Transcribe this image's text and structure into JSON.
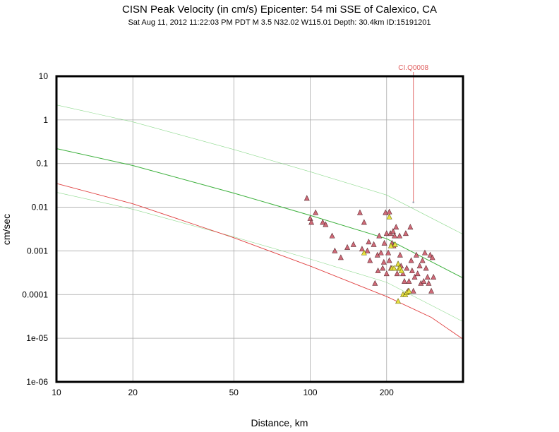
{
  "chart_data": {
    "type": "scatter",
    "title": "CISN Peak Velocity (in cm/s) Epicenter: 54 mi SSE of Calexico, CA",
    "subtitle": "Sat Aug 11, 2012 11:22:03 PM PDT   M 3.5   N32.02 W115.01   Depth: 30.4km   ID:15191201",
    "xlabel": "Distance, km",
    "ylabel": "cm/sec",
    "x_scale": "log",
    "y_scale": "log",
    "xlim": [
      10,
      400
    ],
    "ylim": [
      1e-06,
      10
    ],
    "grid": true,
    "x_ticks": [
      {
        "value": 10,
        "label": "10"
      },
      {
        "value": 20,
        "label": "20"
      },
      {
        "value": 50,
        "label": "50"
      },
      {
        "value": 100,
        "label": "100"
      },
      {
        "value": 200,
        "label": "200"
      }
    ],
    "y_ticks": [
      {
        "value": 10,
        "label": "10"
      },
      {
        "value": 1,
        "label": "1"
      },
      {
        "value": 0.1,
        "label": "0.1"
      },
      {
        "value": 0.01,
        "label": "0.01"
      },
      {
        "value": 0.001,
        "label": "0.001"
      },
      {
        "value": 0.0001,
        "label": "0.0001"
      },
      {
        "value": 1e-05,
        "label": "1e-05"
      },
      {
        "value": 1e-06,
        "label": "1e-06"
      }
    ],
    "curves": [
      {
        "color": "#3cb03c",
        "width": 1.0,
        "opacity": 1.0,
        "points": [
          [
            10,
            0.22
          ],
          [
            20,
            0.09
          ],
          [
            50,
            0.021
          ],
          [
            100,
            0.0065
          ],
          [
            200,
            0.0019
          ],
          [
            400,
            0.00024
          ]
        ]
      },
      {
        "color": "#6fcf6f",
        "width": 0.6,
        "opacity": 0.8,
        "points": [
          [
            10,
            2.2
          ],
          [
            20,
            0.9
          ],
          [
            50,
            0.21
          ],
          [
            100,
            0.065
          ],
          [
            200,
            0.019
          ],
          [
            400,
            0.0024
          ]
        ]
      },
      {
        "color": "#6fcf6f",
        "width": 0.6,
        "opacity": 0.8,
        "points": [
          [
            10,
            0.022
          ],
          [
            20,
            0.009
          ],
          [
            50,
            0.0021
          ],
          [
            100,
            0.00065
          ],
          [
            200,
            0.00019
          ],
          [
            400,
            2.4e-05
          ]
        ]
      },
      {
        "color": "#e04040",
        "width": 0.9,
        "opacity": 1.0,
        "points": [
          [
            10,
            0.035
          ],
          [
            20,
            0.012
          ],
          [
            50,
            0.002
          ],
          [
            100,
            0.00045
          ],
          [
            200,
            9e-05
          ],
          [
            300,
            3e-05
          ],
          [
            400,
            9.5e-06
          ]
        ]
      }
    ],
    "reference_marker": {
      "label": "CI.Q0008",
      "x": 255,
      "y": 0.013,
      "color": "#e06060"
    },
    "series": [
      {
        "fill": "#d06a78",
        "stroke": "#5a2b30",
        "points": [
          [
            97,
            0.016
          ],
          [
            100,
            0.0055
          ],
          [
            101,
            0.0045
          ],
          [
            105,
            0.0075
          ],
          [
            112,
            0.0045
          ],
          [
            115,
            0.004
          ],
          [
            125,
            0.001
          ],
          [
            132,
            0.0007
          ],
          [
            140,
            0.0012
          ],
          [
            148,
            0.0014
          ],
          [
            157,
            0.0075
          ],
          [
            163,
            0.0045
          ],
          [
            168,
            0.001
          ],
          [
            172,
            0.0006
          ],
          [
            178,
            0.0014
          ],
          [
            184,
            0.0008
          ],
          [
            187,
            0.0022
          ],
          [
            190,
            0.0009
          ],
          [
            193,
            0.0004
          ],
          [
            196,
            0.0015
          ],
          [
            198,
            0.0075
          ],
          [
            200,
            0.0025
          ],
          [
            203,
            0.0009
          ],
          [
            205,
            0.0006
          ],
          [
            207,
            0.0025
          ],
          [
            208,
            0.0004
          ],
          [
            210,
            0.0015
          ],
          [
            212,
            0.0028
          ],
          [
            213,
            0.0013
          ],
          [
            215,
            0.0022
          ],
          [
            218,
            0.0035
          ],
          [
            220,
            0.0003
          ],
          [
            222,
            0.0005
          ],
          [
            225,
            0.0022
          ],
          [
            226,
            0.0008
          ],
          [
            228,
            0.00045
          ],
          [
            232,
            0.0003
          ],
          [
            235,
            0.0002
          ],
          [
            238,
            0.0025
          ],
          [
            240,
            0.0004
          ],
          [
            243,
            0.00012
          ],
          [
            245,
            0.0002
          ],
          [
            248,
            0.0035
          ],
          [
            250,
            0.0006
          ],
          [
            252,
            0.00035
          ],
          [
            255,
            0.00012
          ],
          [
            258,
            0.00025
          ],
          [
            262,
            0.0008
          ],
          [
            265,
            0.0003
          ],
          [
            270,
            0.00045
          ],
          [
            273,
            0.00018
          ],
          [
            277,
            0.0006
          ],
          [
            280,
            0.0002
          ],
          [
            283,
            0.0009
          ],
          [
            286,
            0.0004
          ],
          [
            290,
            0.00025
          ],
          [
            293,
            0.00018
          ],
          [
            297,
            0.0008
          ],
          [
            300,
            0.00012
          ],
          [
            303,
            0.0007
          ],
          [
            306,
            0.00025
          ],
          [
            200,
            0.0003
          ],
          [
            195,
            0.00055
          ],
          [
            185,
            0.00035
          ],
          [
            180,
            0.00018
          ],
          [
            205,
            0.0078
          ],
          [
            170,
            0.0016
          ],
          [
            160,
            0.0011
          ],
          [
            122,
            0.0022
          ]
        ]
      },
      {
        "fill": "#e8e040",
        "stroke": "#6a6a10",
        "points": [
          [
            163,
            0.0009
          ],
          [
            205,
            0.006
          ],
          [
            210,
            0.0004
          ],
          [
            214,
            0.0004
          ],
          [
            216,
            0.0014
          ],
          [
            222,
            0.0005
          ],
          [
            224,
            0.0004
          ],
          [
            226,
            0.0004
          ],
          [
            229,
            0.00035
          ],
          [
            232,
            0.0001
          ],
          [
            237,
            0.0001
          ],
          [
            240,
            0.00011
          ],
          [
            245,
            0.00012
          ],
          [
            222,
            7e-05
          ],
          [
            208,
            0.0013
          ]
        ]
      }
    ]
  }
}
